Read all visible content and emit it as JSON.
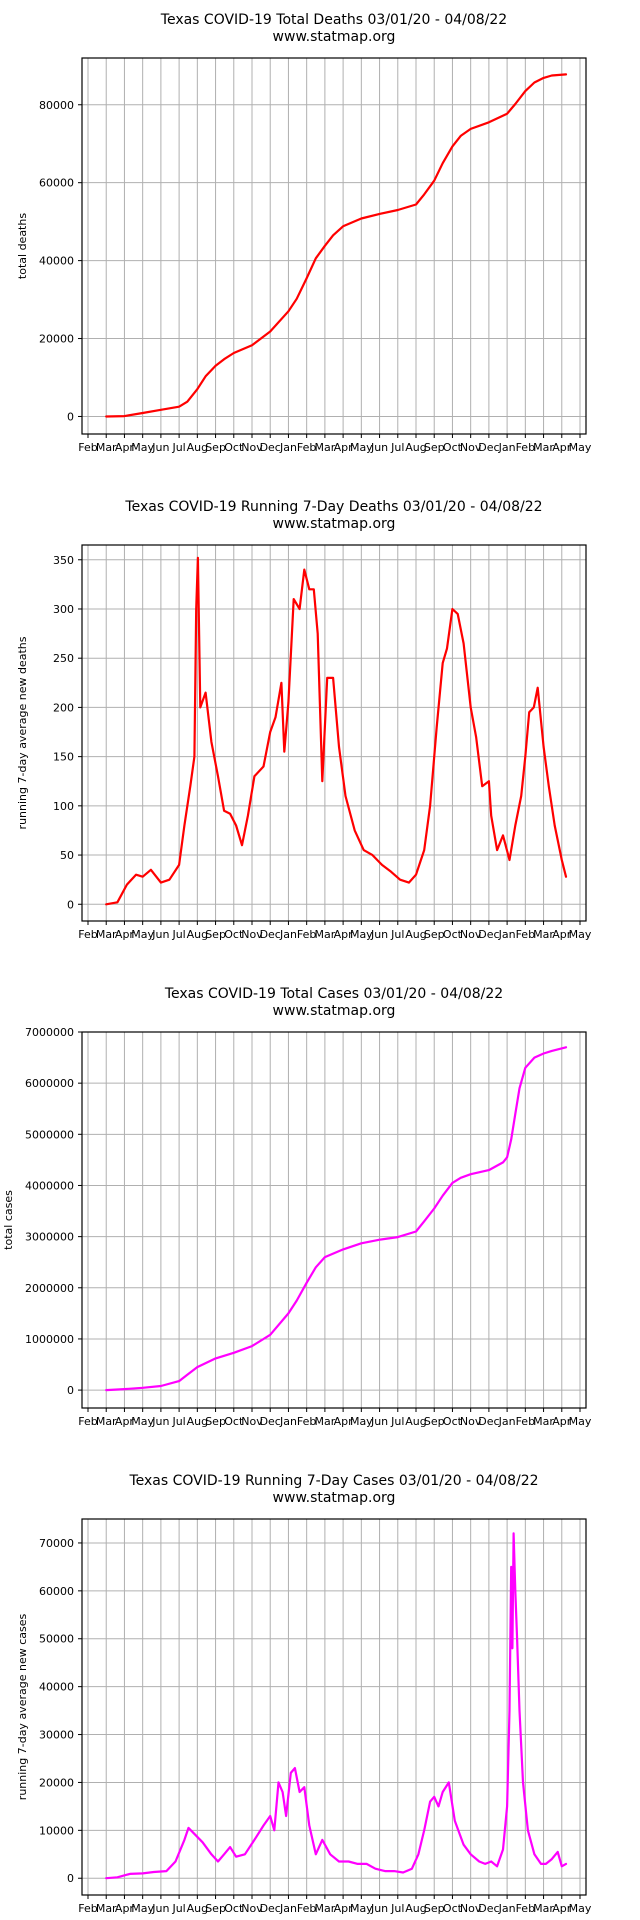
{
  "colors": {
    "grid": "#b0b0b0",
    "axes": "#000000",
    "background": "#ffffff",
    "deaths_line": "#ff0000",
    "cases_line": "#ff00ff"
  },
  "x_axis": {
    "tick_labels": [
      "Feb",
      "Mar",
      "Apr",
      "May",
      "Jun",
      "Jul",
      "Aug",
      "Sep",
      "Oct",
      "Nov",
      "Dec",
      "Jan",
      "Feb",
      "Mar",
      "Apr",
      "May",
      "Jun",
      "Jul",
      "Aug",
      "Sep",
      "Oct",
      "Nov",
      "Dec",
      "Jan",
      "Feb",
      "Mar",
      "Apr",
      "May"
    ],
    "range": [
      "2020-02",
      "2022-05"
    ]
  },
  "chart_data": [
    {
      "type": "line",
      "title": "Texas COVID-19 Total Deaths 03/01/20 - 04/08/22",
      "subtitle": "www.statmap.org",
      "xlabel": "",
      "ylabel": "total deaths",
      "grid": true,
      "color": "#ff0000",
      "ylim": [
        -4500,
        92000
      ],
      "yticks": [
        0,
        20000,
        40000,
        60000,
        80000
      ],
      "ytick_labels": [
        "0",
        "20000",
        "40000",
        "60000",
        "80000"
      ],
      "x": [
        "2020-03-01",
        "2020-04-01",
        "2020-05-01",
        "2020-06-01",
        "2020-07-01",
        "2020-07-15",
        "2020-08-01",
        "2020-08-15",
        "2020-09-01",
        "2020-09-15",
        "2020-10-01",
        "2020-11-01",
        "2020-12-01",
        "2021-01-01",
        "2021-01-15",
        "2021-02-01",
        "2021-02-15",
        "2021-03-01",
        "2021-03-15",
        "2021-04-01",
        "2021-05-01",
        "2021-06-01",
        "2021-07-01",
        "2021-08-01",
        "2021-08-15",
        "2021-09-01",
        "2021-09-15",
        "2021-10-01",
        "2021-10-15",
        "2021-11-01",
        "2021-12-01",
        "2022-01-01",
        "2022-01-15",
        "2022-02-01",
        "2022-02-15",
        "2022-03-01",
        "2022-03-15",
        "2022-04-08"
      ],
      "series": [
        {
          "values": [
            0,
            100,
            900,
            1700,
            2500,
            3800,
            7000,
            10300,
            13000,
            14700,
            16300,
            18300,
            21800,
            27000,
            30200,
            35500,
            40600,
            43800,
            46500,
            48800,
            50800,
            52000,
            53000,
            54400,
            57000,
            60500,
            65000,
            69300,
            72000,
            73800,
            75500,
            77700,
            80200,
            83500,
            85700,
            86900,
            87500,
            87800
          ]
        }
      ]
    },
    {
      "type": "line",
      "title": "Texas COVID-19 Running 7-Day Deaths 03/01/20 - 04/08/22",
      "subtitle": "www.statmap.org",
      "xlabel": "",
      "ylabel": "running 7-day average new deaths",
      "grid": true,
      "color": "#ff0000",
      "ylim": [
        -17,
        365
      ],
      "yticks": [
        0,
        50,
        100,
        150,
        200,
        250,
        300,
        350
      ],
      "ytick_labels": [
        "0",
        "50",
        "100",
        "150",
        "200",
        "250",
        "300",
        "350"
      ],
      "x": [
        "2020-03-01",
        "2020-03-20",
        "2020-04-05",
        "2020-04-20",
        "2020-05-01",
        "2020-05-15",
        "2020-06-01",
        "2020-06-15",
        "2020-07-01",
        "2020-07-10",
        "2020-07-20",
        "2020-07-27",
        "2020-07-30",
        "2020-08-02",
        "2020-08-06",
        "2020-08-15",
        "2020-08-25",
        "2020-09-05",
        "2020-09-15",
        "2020-09-25",
        "2020-10-05",
        "2020-10-15",
        "2020-10-25",
        "2020-11-05",
        "2020-11-20",
        "2020-12-01",
        "2020-12-10",
        "2020-12-20",
        "2020-12-25",
        "2021-01-01",
        "2021-01-10",
        "2021-01-20",
        "2021-01-28",
        "2021-02-05",
        "2021-02-12",
        "2021-02-18",
        "2021-02-25",
        "2021-03-05",
        "2021-03-15",
        "2021-03-25",
        "2021-04-05",
        "2021-04-20",
        "2021-05-05",
        "2021-05-20",
        "2021-06-05",
        "2021-06-20",
        "2021-07-05",
        "2021-07-20",
        "2021-08-01",
        "2021-08-15",
        "2021-08-25",
        "2021-09-05",
        "2021-09-15",
        "2021-09-22",
        "2021-10-01",
        "2021-10-10",
        "2021-10-20",
        "2021-11-01",
        "2021-11-10",
        "2021-11-20",
        "2021-12-01",
        "2021-12-05",
        "2021-12-15",
        "2021-12-25",
        "2022-01-05",
        "2022-01-15",
        "2022-01-25",
        "2022-02-01",
        "2022-02-07",
        "2022-02-14",
        "2022-02-20",
        "2022-03-01",
        "2022-03-10",
        "2022-03-20",
        "2022-04-01",
        "2022-04-08"
      ],
      "series": [
        {
          "values": [
            0,
            2,
            20,
            30,
            28,
            35,
            22,
            25,
            40,
            80,
            120,
            150,
            300,
            352,
            200,
            215,
            165,
            130,
            95,
            92,
            80,
            60,
            90,
            130,
            140,
            175,
            190,
            225,
            155,
            205,
            310,
            300,
            340,
            320,
            320,
            275,
            125,
            230,
            230,
            160,
            110,
            75,
            55,
            50,
            40,
            33,
            25,
            22,
            30,
            55,
            100,
            180,
            245,
            260,
            300,
            295,
            265,
            200,
            170,
            120,
            125,
            90,
            55,
            70,
            45,
            80,
            110,
            150,
            195,
            200,
            220,
            160,
            120,
            80,
            45,
            28
          ]
        }
      ]
    },
    {
      "type": "line",
      "title": "Texas COVID-19 Total Cases 03/01/20 - 04/08/22",
      "subtitle": "www.statmap.org",
      "xlabel": "",
      "ylabel": "total cases",
      "grid": true,
      "color": "#ff00ff",
      "ylim": [
        -350000,
        7000000
      ],
      "yticks": [
        0,
        1000000,
        2000000,
        3000000,
        4000000,
        5000000,
        6000000,
        7000000
      ],
      "ytick_labels": [
        "0",
        "1000000",
        "2000000",
        "3000000",
        "4000000",
        "5000000",
        "6000000",
        "7000000"
      ],
      "x": [
        "2020-03-01",
        "2020-04-01",
        "2020-05-01",
        "2020-06-01",
        "2020-07-01",
        "2020-07-15",
        "2020-08-01",
        "2020-09-01",
        "2020-10-01",
        "2020-11-01",
        "2020-12-01",
        "2021-01-01",
        "2021-01-15",
        "2021-02-01",
        "2021-02-15",
        "2021-03-01",
        "2021-04-01",
        "2021-05-01",
        "2021-06-01",
        "2021-07-01",
        "2021-08-01",
        "2021-08-15",
        "2021-09-01",
        "2021-09-15",
        "2021-10-01",
        "2021-10-15",
        "2021-11-01",
        "2021-12-01",
        "2021-12-25",
        "2022-01-01",
        "2022-01-08",
        "2022-01-15",
        "2022-01-22",
        "2022-02-01",
        "2022-02-15",
        "2022-03-01",
        "2022-03-15",
        "2022-04-08"
      ],
      "series": [
        {
          "values": [
            0,
            20000,
            45000,
            80000,
            175000,
            300000,
            450000,
            620000,
            730000,
            860000,
            1080000,
            1500000,
            1750000,
            2100000,
            2400000,
            2600000,
            2750000,
            2870000,
            2940000,
            2990000,
            3100000,
            3300000,
            3550000,
            3800000,
            4050000,
            4150000,
            4220000,
            4300000,
            4450000,
            4550000,
            4900000,
            5400000,
            5900000,
            6300000,
            6500000,
            6580000,
            6630000,
            6700000
          ]
        }
      ]
    },
    {
      "type": "line",
      "title": "Texas COVID-19 Running 7-Day Cases 03/01/20 - 04/08/22",
      "subtitle": "www.statmap.org",
      "xlabel": "",
      "ylabel": "running 7-day average new cases",
      "grid": true,
      "color": "#ff00ff",
      "ylim": [
        -3500,
        75000
      ],
      "yticks": [
        0,
        10000,
        20000,
        30000,
        40000,
        50000,
        60000,
        70000
      ],
      "ytick_labels": [
        "0",
        "10000",
        "20000",
        "30000",
        "40000",
        "50000",
        "60000",
        "70000"
      ],
      "x": [
        "2020-03-01",
        "2020-03-20",
        "2020-04-10",
        "2020-05-01",
        "2020-05-20",
        "2020-06-10",
        "2020-06-25",
        "2020-07-10",
        "2020-07-17",
        "2020-07-25",
        "2020-08-10",
        "2020-08-25",
        "2020-09-05",
        "2020-09-15",
        "2020-09-25",
        "2020-10-05",
        "2020-10-20",
        "2020-11-05",
        "2020-11-20",
        "2020-12-01",
        "2020-12-08",
        "2020-12-15",
        "2020-12-22",
        "2020-12-28",
        "2021-01-05",
        "2021-01-12",
        "2021-01-20",
        "2021-01-28",
        "2021-02-05",
        "2021-02-15",
        "2021-02-25",
        "2021-03-10",
        "2021-03-25",
        "2021-04-10",
        "2021-04-25",
        "2021-05-10",
        "2021-05-25",
        "2021-06-10",
        "2021-06-25",
        "2021-07-10",
        "2021-07-25",
        "2021-08-05",
        "2021-08-15",
        "2021-08-25",
        "2021-09-01",
        "2021-09-08",
        "2021-09-15",
        "2021-09-25",
        "2021-10-05",
        "2021-10-20",
        "2021-11-01",
        "2021-11-15",
        "2021-11-25",
        "2021-12-05",
        "2021-12-15",
        "2021-12-25",
        "2022-01-01",
        "2022-01-05",
        "2022-01-08",
        "2022-01-10",
        "2022-01-12",
        "2022-01-15",
        "2022-01-18",
        "2022-01-22",
        "2022-01-28",
        "2022-02-05",
        "2022-02-15",
        "2022-02-25",
        "2022-03-05",
        "2022-03-15",
        "2022-03-25",
        "2022-04-01",
        "2022-04-08"
      ],
      "series": [
        {
          "values": [
            0,
            200,
            900,
            1000,
            1300,
            1500,
            3500,
            8000,
            10500,
            9500,
            7500,
            5000,
            3500,
            5000,
            6500,
            4500,
            5000,
            8000,
            11000,
            13000,
            10000,
            20000,
            18000,
            13000,
            22000,
            23000,
            18000,
            19000,
            11000,
            5000,
            8000,
            5000,
            3500,
            3500,
            3000,
            3000,
            2000,
            1500,
            1500,
            1200,
            2000,
            5000,
            10000,
            16000,
            17000,
            15000,
            18000,
            20000,
            12000,
            7000,
            5000,
            3500,
            3000,
            3500,
            2500,
            6000,
            15000,
            35000,
            65000,
            48000,
            72000,
            60000,
            50000,
            35000,
            20000,
            10000,
            5000,
            3000,
            3000,
            4000,
            5500,
            2500,
            3000
          ]
        }
      ]
    }
  ]
}
